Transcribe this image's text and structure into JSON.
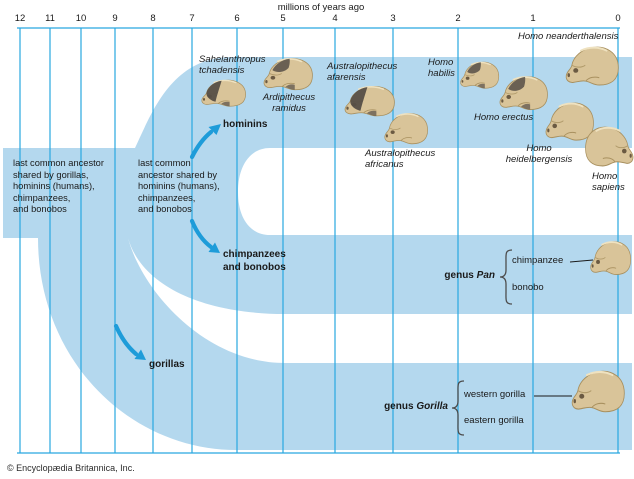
{
  "axis": {
    "title": "millions of years ago",
    "ticks": [
      "12",
      "11",
      "10",
      "9",
      "8",
      "7",
      "6",
      "5",
      "4",
      "3",
      "2",
      "1",
      "0"
    ]
  },
  "species": {
    "sahelanthropus": {
      "l1": "Sahelanthropus",
      "l2": "tchadensis"
    },
    "ardipithecus": {
      "l1": "Ardipithecus",
      "l2": "ramidus"
    },
    "afarensis": {
      "l1": "Australopithecus",
      "l2": "afarensis"
    },
    "africanus": {
      "l1": "Australopithecus",
      "l2": "africanus"
    },
    "habilis": {
      "l1": "Homo",
      "l2": "habilis"
    },
    "erectus": {
      "l1": "Homo erectus"
    },
    "neanderthalensis": {
      "l1": "Homo neanderthalensis"
    },
    "heidelbergensis": {
      "l1": "Homo",
      "l2": "heidelbergensis"
    },
    "sapiens": {
      "l1": "Homo",
      "l2": "sapiens"
    }
  },
  "branches": {
    "hominins": "hominins",
    "chimps_l1": "chimpanzees",
    "chimps_l2": "and bonobos",
    "gorillas": "gorillas"
  },
  "ancestors": {
    "a1": [
      "last common ancestor",
      "shared by gorillas,",
      "hominins (humans),",
      "chimpanzees,",
      "and bonobos"
    ],
    "a2": [
      "last common",
      "ancestor shared by",
      "hominins (humans),",
      "chimpanzees,",
      "and bonobos"
    ]
  },
  "genus_pan": {
    "label": "genus ",
    "genus": "Pan",
    "members": [
      "chimpanzee",
      "bonobo"
    ]
  },
  "genus_gorilla": {
    "label": "genus ",
    "genus": "Gorilla",
    "members": [
      "western gorilla",
      "eastern gorilla"
    ]
  },
  "credit": "© Encyclopædia Britannica, Inc.",
  "colors": {
    "band": "#b4d8ee",
    "grid": "#29a8e0",
    "arrow": "#1e9cd9",
    "text": "#1a1a1a",
    "bracket": "#4d4d4d",
    "skull_base": "#d9c499",
    "skull_dark": "#564f47"
  }
}
